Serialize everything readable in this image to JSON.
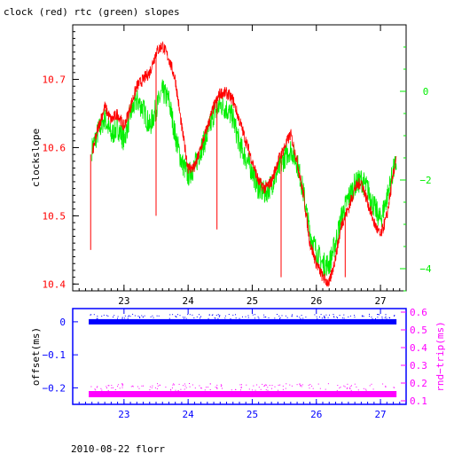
{
  "title": "clock (red) rtc (green) slopes",
  "footer": "2010-08-22 florr",
  "colors": {
    "clock": "#ff0000",
    "rtc": "#00ee00",
    "offset": "#0000ff",
    "rtt": "#ff00ff",
    "axes": "#000000"
  },
  "chart_data": [
    {
      "type": "line",
      "panel": "top",
      "ylabel": "clockslope",
      "xlim": [
        22.2,
        27.4
      ],
      "ylim": [
        10.39,
        10.78
      ],
      "y2lim": [
        -4.5,
        1.5
      ],
      "x_ticks": [
        "23",
        "24",
        "25",
        "26",
        "27"
      ],
      "y_ticks": [
        "10.4",
        "10.5",
        "10.6",
        "10.7"
      ],
      "y2_ticks": [
        "0",
        "−2",
        "−4"
      ],
      "series": [
        {
          "name": "clock",
          "axis": "left",
          "x": [
            22.5,
            22.6,
            22.7,
            22.8,
            22.9,
            23.0,
            23.1,
            23.2,
            23.3,
            23.4,
            23.5,
            23.6,
            23.7,
            23.8,
            23.9,
            24.0,
            24.1,
            24.2,
            24.3,
            24.4,
            24.5,
            24.6,
            24.7,
            24.8,
            24.9,
            25.0,
            25.1,
            25.2,
            25.3,
            25.4,
            25.5,
            25.6,
            25.7,
            25.8,
            25.9,
            26.0,
            26.1,
            26.2,
            26.3,
            26.4,
            26.5,
            26.6,
            26.7,
            26.8,
            26.9,
            27.0,
            27.1,
            27.2,
            27.25
          ],
          "y": [
            10.59,
            10.63,
            10.66,
            10.64,
            10.65,
            10.63,
            10.66,
            10.69,
            10.7,
            10.71,
            10.74,
            10.75,
            10.73,
            10.7,
            10.63,
            10.57,
            10.57,
            10.6,
            10.63,
            10.66,
            10.68,
            10.68,
            10.67,
            10.64,
            10.61,
            10.58,
            10.55,
            10.54,
            10.55,
            10.58,
            10.6,
            10.62,
            10.58,
            10.53,
            10.46,
            10.43,
            10.41,
            10.4,
            10.44,
            10.49,
            10.51,
            10.54,
            10.55,
            10.52,
            10.49,
            10.47,
            10.5,
            10.56,
            10.59
          ]
        },
        {
          "name": "rtc",
          "axis": "right",
          "x": [
            22.5,
            22.6,
            22.7,
            22.8,
            22.9,
            23.0,
            23.1,
            23.2,
            23.3,
            23.4,
            23.5,
            23.6,
            23.7,
            23.8,
            23.9,
            24.0,
            24.1,
            24.2,
            24.3,
            24.4,
            24.5,
            24.6,
            24.7,
            24.8,
            24.9,
            25.0,
            25.1,
            25.2,
            25.3,
            25.4,
            25.5,
            25.6,
            25.7,
            25.8,
            25.9,
            26.0,
            26.1,
            26.2,
            26.3,
            26.4,
            26.5,
            26.6,
            26.7,
            26.8,
            26.9,
            27.0,
            27.1,
            27.2,
            27.25
          ],
          "y": [
            -1.3,
            -0.9,
            -0.6,
            -1.0,
            -0.8,
            -1.1,
            -0.5,
            -0.2,
            -0.4,
            -0.8,
            -0.4,
            0.0,
            -0.2,
            -1.0,
            -1.6,
            -1.9,
            -1.7,
            -1.3,
            -1.0,
            -0.5,
            -0.3,
            -0.4,
            -0.6,
            -1.2,
            -1.5,
            -1.8,
            -2.2,
            -2.3,
            -2.1,
            -1.8,
            -1.5,
            -1.3,
            -1.6,
            -2.3,
            -3.2,
            -3.6,
            -3.9,
            -3.9,
            -3.4,
            -2.8,
            -2.4,
            -2.1,
            -2.0,
            -2.2,
            -2.6,
            -2.9,
            -2.4,
            -1.8,
            -1.6
          ]
        }
      ]
    },
    {
      "type": "scatter",
      "panel": "bottom",
      "ylabel": "offset(ms)",
      "y2label": "rnd−trip(ms)",
      "xlim": [
        22.2,
        27.4
      ],
      "ylim": [
        -0.25,
        0.04
      ],
      "y2lim": [
        0.08,
        0.62
      ],
      "x_ticks": [
        "23",
        "24",
        "25",
        "26",
        "27"
      ],
      "y_ticks": [
        "0",
        "−0.1",
        "−0.2"
      ],
      "y2_ticks": [
        "0.1",
        "0.2",
        "0.3",
        "0.4",
        "0.5",
        "0.6"
      ],
      "series": [
        {
          "name": "offset",
          "axis": "left",
          "x": [
            22.45,
            27.25
          ],
          "y": [
            0.0,
            0.0
          ]
        },
        {
          "name": "rnd-trip",
          "axis": "right",
          "x": [
            22.45,
            27.25
          ],
          "y": [
            0.14,
            0.14
          ]
        }
      ]
    }
  ]
}
